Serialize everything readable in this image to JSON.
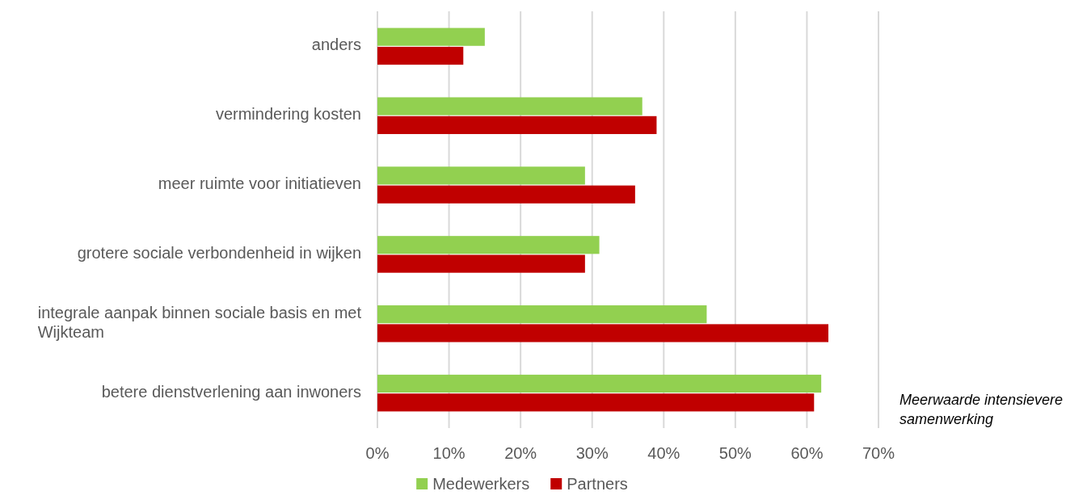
{
  "chart_data": {
    "type": "bar",
    "orientation": "horizontal",
    "categories": [
      "anders",
      "vermindering kosten",
      "meer ruimte voor initiatieven",
      "grotere sociale verbondenheid in wijken",
      "integrale aanpak binnen sociale basis en met Wijkteam",
      "betere dienstverlening  aan inwoners"
    ],
    "series": [
      {
        "name": "Medewerkers",
        "color": "#92d050",
        "values": [
          15,
          37,
          29,
          31,
          46,
          62
        ]
      },
      {
        "name": "Partners",
        "color": "#c00000",
        "values": [
          12,
          39,
          36,
          29,
          63,
          61
        ]
      }
    ],
    "xlim": [
      0,
      70
    ],
    "xticks": [
      {
        "value": 0,
        "label": "0%"
      },
      {
        "value": 10,
        "label": "10%"
      },
      {
        "value": 20,
        "label": "20%"
      },
      {
        "value": 30,
        "label": "30%"
      },
      {
        "value": 40,
        "label": "40%"
      },
      {
        "value": 50,
        "label": "50%"
      },
      {
        "value": 60,
        "label": "60%"
      },
      {
        "value": 70,
        "label": "70%"
      }
    ],
    "grid": "x",
    "legend": "bottom",
    "annotations": [
      "Meerwaarde intensievere samenwerking"
    ]
  }
}
